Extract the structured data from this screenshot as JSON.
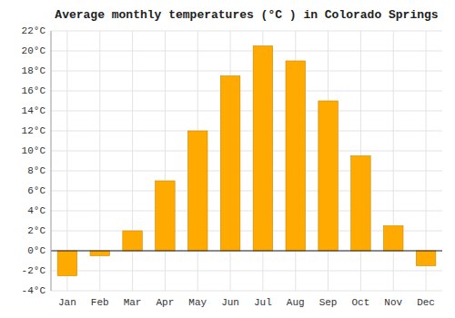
{
  "chart_data": {
    "type": "bar",
    "title": "Average monthly temperatures (°C ) in Colorado Springs",
    "categories": [
      "Jan",
      "Feb",
      "Mar",
      "Apr",
      "May",
      "Jun",
      "Jul",
      "Aug",
      "Sep",
      "Oct",
      "Nov",
      "Dec"
    ],
    "values": [
      -2.5,
      -0.5,
      2.0,
      7.0,
      12.0,
      17.5,
      20.5,
      19.0,
      15.0,
      9.5,
      2.5,
      -1.5
    ],
    "color": "#FFAA00",
    "ylim": [
      -4,
      22
    ],
    "yticks": [
      {
        "value": -4,
        "label": "-4°C"
      },
      {
        "value": -2,
        "label": "-2°C"
      },
      {
        "value": 0,
        "label": "0°C"
      },
      {
        "value": 2,
        "label": "2°C"
      },
      {
        "value": 4,
        "label": "4°C"
      },
      {
        "value": 6,
        "label": "6°C"
      },
      {
        "value": 8,
        "label": "8°C"
      },
      {
        "value": 10,
        "label": "10°C"
      },
      {
        "value": 12,
        "label": "12°C"
      },
      {
        "value": 14,
        "label": "14°C"
      },
      {
        "value": 16,
        "label": "16°C"
      },
      {
        "value": 18,
        "label": "18°C"
      },
      {
        "value": 20,
        "label": "20°C"
      },
      {
        "value": 22,
        "label": "22°C"
      }
    ],
    "grid": true
  }
}
